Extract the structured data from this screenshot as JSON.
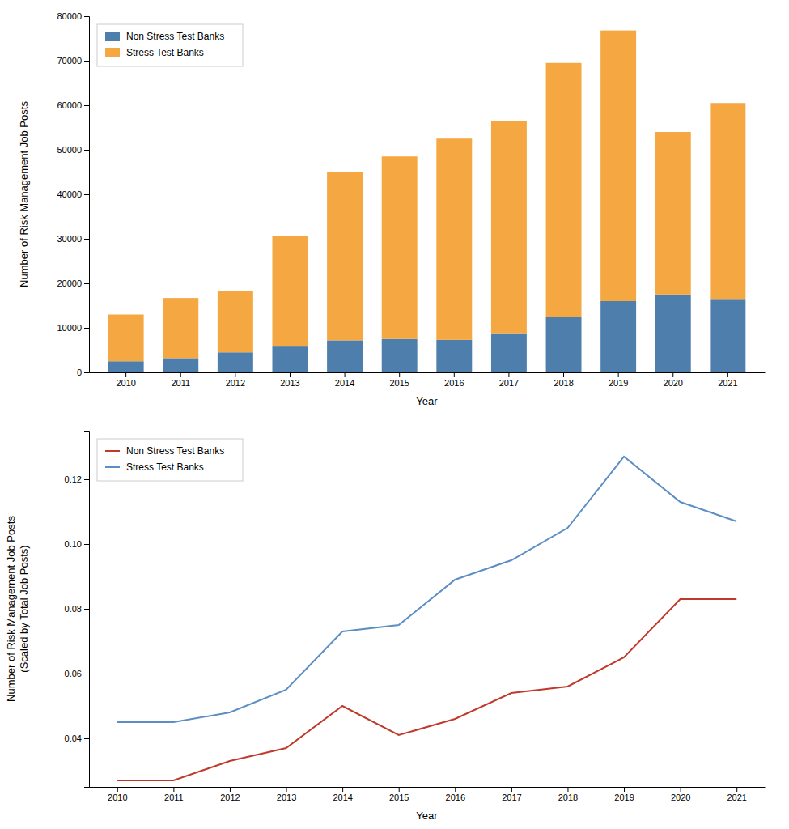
{
  "chart_data": [
    {
      "type": "bar",
      "stacked": true,
      "categories": [
        "2010",
        "2011",
        "2012",
        "2013",
        "2014",
        "2015",
        "2016",
        "2017",
        "2018",
        "2019",
        "2020",
        "2021"
      ],
      "series": [
        {
          "name": "Non Stress Test Banks",
          "color": "#4e7fac",
          "values": [
            2500,
            3200,
            4500,
            5800,
            7200,
            7500,
            7300,
            8800,
            12500,
            16000,
            17500,
            16500
          ]
        },
        {
          "name": "Stress Test Banks",
          "color": "#f5a742",
          "values": [
            10500,
            13500,
            13700,
            24900,
            37800,
            41000,
            45200,
            47700,
            57000,
            60800,
            36500,
            44000
          ]
        }
      ],
      "xlabel": "Year",
      "ylabel": "Number of Risk Management Job Posts",
      "ylim": [
        0,
        80000
      ],
      "yticks": [
        0,
        10000,
        20000,
        30000,
        40000,
        50000,
        60000,
        70000,
        80000
      ],
      "legend": "upper left"
    },
    {
      "type": "line",
      "categories": [
        "2010",
        "2011",
        "2012",
        "2013",
        "2014",
        "2015",
        "2016",
        "2017",
        "2018",
        "2019",
        "2020",
        "2021"
      ],
      "series": [
        {
          "name": "Non Stress Test Banks",
          "color": "#c0392b",
          "values": [
            0.027,
            0.027,
            0.033,
            0.037,
            0.05,
            0.041,
            0.046,
            0.054,
            0.056,
            0.065,
            0.083,
            0.083
          ]
        },
        {
          "name": "Stress Test Banks",
          "color": "#5b8ec4",
          "values": [
            0.045,
            0.045,
            0.048,
            0.055,
            0.073,
            0.075,
            0.089,
            0.095,
            0.105,
            0.127,
            0.113,
            0.107
          ]
        }
      ],
      "xlabel": "Year",
      "ylabel": "Number of Risk Management Job Posts\n(Scaled by Total Job Posts)",
      "ylim": [
        0.025,
        0.135
      ],
      "yticks": [
        0.04,
        0.06,
        0.08,
        {
          "value": 0.1,
          "label": "0.10"
        },
        0.12
      ],
      "legend": "upper left"
    }
  ]
}
